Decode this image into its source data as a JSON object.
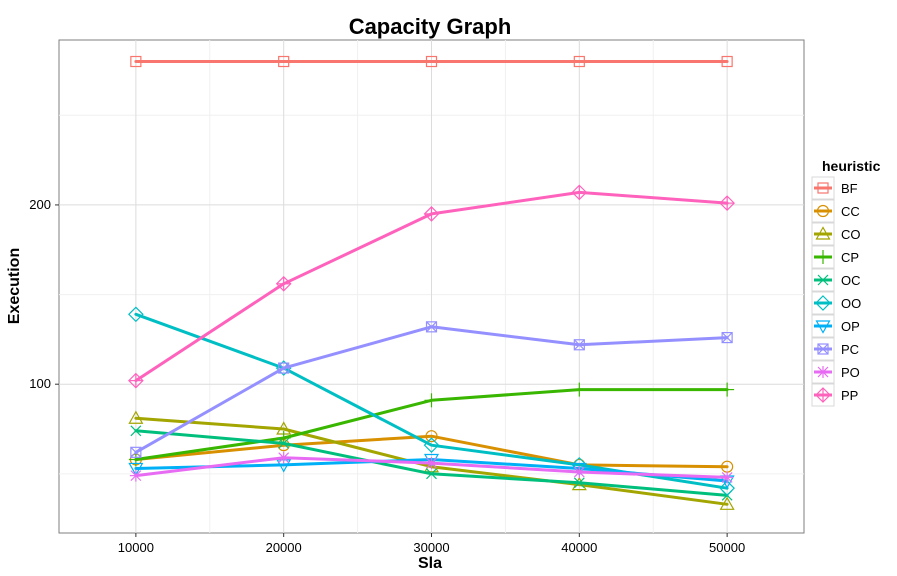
{
  "chart_data": {
    "type": "line",
    "title": "Capacity Graph",
    "xlabel": "Sla",
    "ylabel": "Execution",
    "x": [
      10000,
      20000,
      30000,
      40000,
      50000
    ],
    "x_ticks": [
      "10000",
      "20000",
      "30000",
      "40000",
      "50000"
    ],
    "y_ticks": [
      "100",
      "200"
    ],
    "xlim": [
      4800,
      55200
    ],
    "ylim": [
      17,
      292
    ],
    "grid": true,
    "legend": {
      "title": "heuristic",
      "position": "right"
    },
    "series": [
      {
        "name": "BF",
        "color": "#F8766D",
        "marker": "square",
        "values": [
          280,
          280,
          280,
          280,
          280
        ]
      },
      {
        "name": "CC",
        "color": "#D89000",
        "marker": "circle",
        "values": [
          58,
          66,
          71,
          55,
          54
        ]
      },
      {
        "name": "CO",
        "color": "#A3A500",
        "marker": "triangle-up",
        "values": [
          81,
          75,
          54,
          44,
          33
        ]
      },
      {
        "name": "CP",
        "color": "#39B600",
        "marker": "plus",
        "values": [
          58,
          70,
          91,
          97,
          97
        ]
      },
      {
        "name": "OC",
        "color": "#00BF7D",
        "marker": "cross",
        "values": [
          74,
          67,
          50,
          45,
          38
        ]
      },
      {
        "name": "OO",
        "color": "#00BFC4",
        "marker": "diamond",
        "values": [
          139,
          109,
          66,
          55,
          42
        ]
      },
      {
        "name": "OP",
        "color": "#00B0F6",
        "marker": "triangle-down",
        "values": [
          53,
          55,
          58,
          53,
          46
        ]
      },
      {
        "name": "PC",
        "color": "#9590FF",
        "marker": "square-cross",
        "values": [
          62,
          109,
          132,
          122,
          126
        ]
      },
      {
        "name": "PO",
        "color": "#E76BF3",
        "marker": "asterisk",
        "values": [
          49,
          59,
          56,
          51,
          48
        ]
      },
      {
        "name": "PP",
        "color": "#FF62BC",
        "marker": "diamond-plus",
        "values": [
          102,
          156,
          195,
          207,
          201
        ]
      }
    ]
  }
}
